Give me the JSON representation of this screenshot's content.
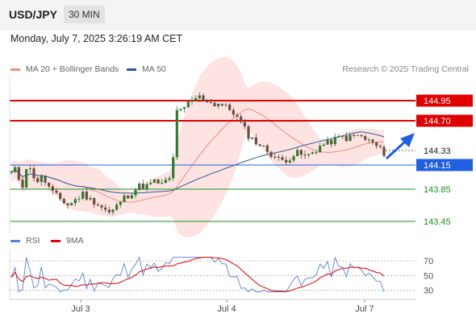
{
  "header": {
    "pair": "USD/JPY",
    "timeframe": "30 MIN"
  },
  "timestamp": "Monday, July 7, 2025 3:26:19 AM CET",
  "legend": {
    "ma20": {
      "label": "MA 20 + Bollinger Bands",
      "color": "#f28b82"
    },
    "ma50": {
      "label": "MA 50",
      "color": "#2c5aa0"
    },
    "rsi": {
      "label": "RSI",
      "color": "#5b7fd4"
    },
    "ma9": {
      "label": "9MA",
      "color": "#e00000"
    }
  },
  "credit": "Research © 2025 Trading Central",
  "chart_data": [
    {
      "type": "candlestick",
      "x_labels": [
        "Jul 3",
        "Jul 4",
        "Jul 7"
      ],
      "price_range": [
        143.35,
        145.25
      ],
      "current_price": "144.33",
      "levels": [
        {
          "value": 144.95,
          "label": "144.95",
          "kind": "resistance",
          "color": "#e00000"
        },
        {
          "value": 144.7,
          "label": "144.70",
          "kind": "resistance",
          "color": "#e00000"
        },
        {
          "value": 144.15,
          "label": "144.15",
          "kind": "pivot",
          "color": "#1f5fe0"
        },
        {
          "value": 143.85,
          "label": "143.85",
          "kind": "support",
          "color": "#228b22"
        },
        {
          "value": 143.45,
          "label": "143.45",
          "kind": "support",
          "color": "#228b22"
        }
      ],
      "close_path": [
        144.05,
        144.1,
        143.85,
        144.15,
        144.05,
        143.95,
        144.0,
        143.9,
        143.8,
        143.75,
        143.7,
        143.65,
        143.7,
        143.75,
        143.8,
        143.72,
        143.7,
        143.65,
        143.6,
        143.55,
        143.6,
        143.7,
        143.75,
        143.8,
        143.85,
        143.9,
        143.88,
        143.92,
        143.95,
        143.9,
        143.95,
        144.0,
        144.85,
        144.8,
        144.9,
        144.95,
        145.0,
        144.98,
        144.95,
        144.9,
        144.92,
        144.88,
        144.85,
        144.8,
        144.7,
        144.6,
        144.5,
        144.45,
        144.4,
        144.35,
        144.3,
        144.25,
        144.2,
        144.22,
        144.25,
        144.3,
        144.28,
        144.25,
        144.3,
        144.35,
        144.4,
        144.42,
        144.45,
        144.48,
        144.5,
        144.48,
        144.5,
        144.52,
        144.48,
        144.45,
        144.42,
        144.35,
        144.3
      ]
    },
    {
      "type": "line",
      "title": "RSI",
      "y_ticks": [
        70,
        50,
        30
      ],
      "ylim": [
        22,
        80
      ]
    }
  ]
}
